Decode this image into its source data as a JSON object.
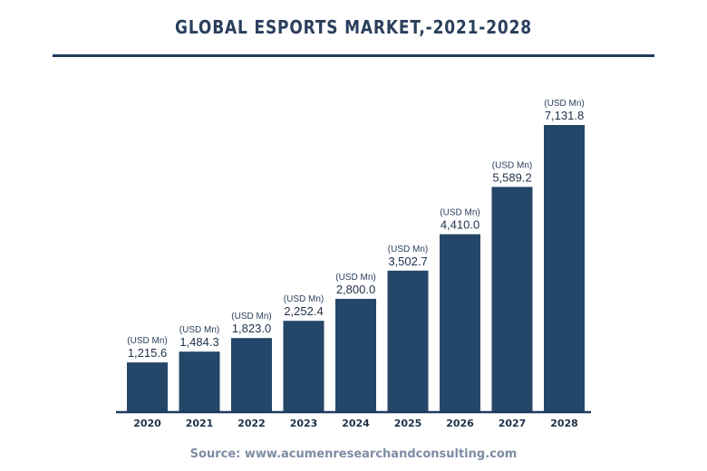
{
  "title": "GLOBAL ESPORTS MARKET,-2021-2028",
  "source": "Source: www.acumenresearchandconsulting.com",
  "colors": {
    "bar": "#244668",
    "axis": "#1f3a5f",
    "title": "#2a3f5c",
    "source": "#7d8da3"
  },
  "chart_data": {
    "type": "bar",
    "title": "GLOBAL ESPORTS MARKET,-2021-2028",
    "xlabel": "",
    "ylabel": "",
    "categories": [
      "2020",
      "2021",
      "2022",
      "2023",
      "2024",
      "2025",
      "2026",
      "2027",
      "2028"
    ],
    "values": [
      1215.6,
      1484.3,
      1823.0,
      2252.4,
      2800.0,
      3502.7,
      4410.0,
      5589.2,
      7131.8
    ],
    "value_labels": [
      "1,215.6",
      "1,484.3",
      "1,823.0",
      "2,252.4",
      "2,800.0",
      "3,502.7",
      "4,410.0",
      "5,589.2",
      "7,131.8"
    ],
    "unit_label": "(USD Mn)",
    "grid": false,
    "legend": "none"
  }
}
